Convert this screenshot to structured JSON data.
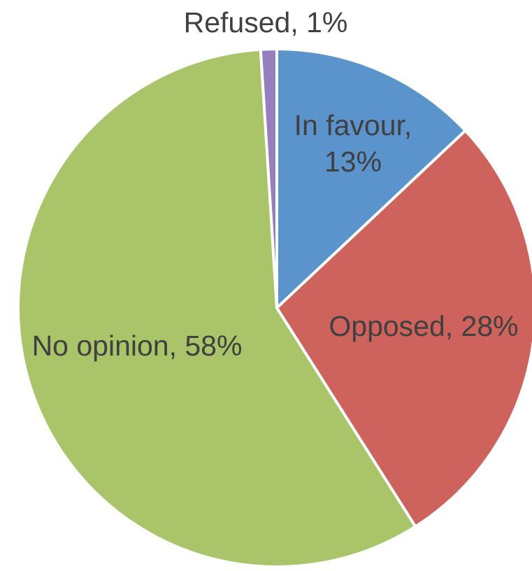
{
  "chart_data": {
    "type": "pie",
    "title": "",
    "slices": [
      {
        "name": "In favour",
        "value": 13,
        "label_lines": [
          "In favour,",
          "13%"
        ],
        "color": "#5B93CC"
      },
      {
        "name": "Opposed",
        "value": 28,
        "label_lines": [
          "Opposed, 28%"
        ],
        "color": "#CD635C"
      },
      {
        "name": "No opinion",
        "value": 58,
        "label_lines": [
          "No opinion, 58%"
        ],
        "color": "#A9C469"
      },
      {
        "name": "Refused",
        "value": 1,
        "label_lines": [
          "Refused, 1%"
        ],
        "color": "#9580BD"
      }
    ],
    "start_angle_deg": 0,
    "direction": "clockwise",
    "legend": "none"
  }
}
